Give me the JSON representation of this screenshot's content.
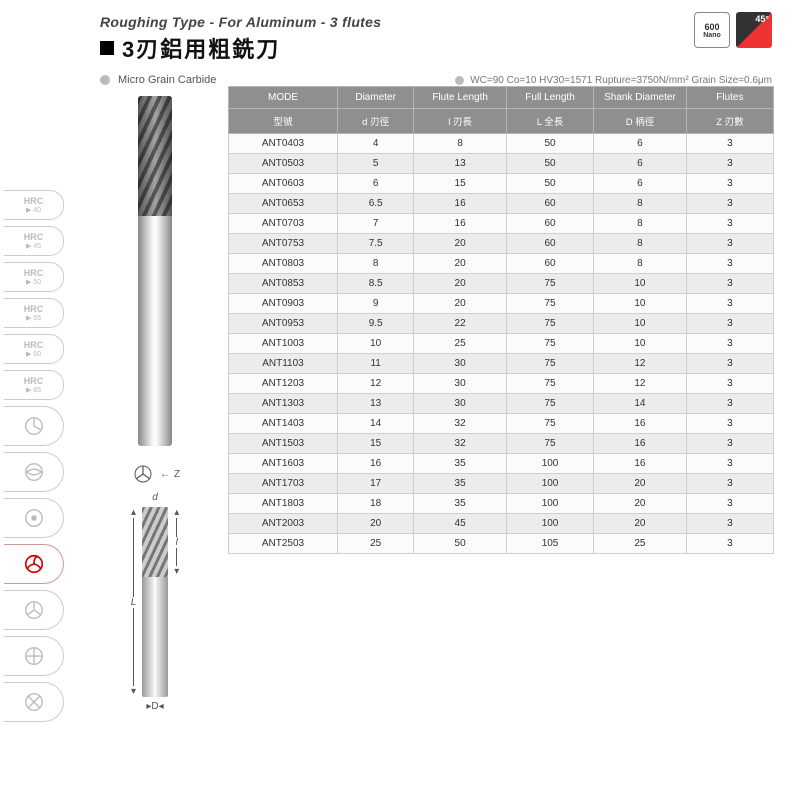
{
  "header": {
    "subtitle": "Roughing Type - For Aluminum - 3 flutes",
    "title": "3刃鋁用粗銑刀",
    "badge_600_top": "600",
    "badge_600_bottom": "Nano",
    "badge_45": "45°"
  },
  "material": {
    "label": "Micro Grain Carbide",
    "spec": "WC=90 Co=10 HV30=1571 Rupture=3750N/mm² Grain Size=0.6μm"
  },
  "rail": {
    "hrc": [
      {
        "t": "HRC",
        "s": "▶ 40"
      },
      {
        "t": "HRC",
        "s": "▶ 45"
      },
      {
        "t": "HRC",
        "s": "▶ 50"
      },
      {
        "t": "HRC",
        "s": "▶ 55"
      },
      {
        "t": "HRC",
        "s": "▶ 60"
      },
      {
        "t": "HRC",
        "s": "▶ 65"
      }
    ]
  },
  "diagram": {
    "z": "Z",
    "d": "d",
    "l": "l",
    "L": "L",
    "D": "D"
  },
  "table": {
    "head1": [
      "MODE",
      "Diameter",
      "Flute\nLength",
      "Full\nLength",
      "Shank\nDiameter",
      "Flutes"
    ],
    "head2": [
      "型號",
      "d 刃徑",
      "l 刃長",
      "L 全長",
      "D 柄徑",
      "Z 刃數"
    ],
    "rows": [
      [
        "ANT0403",
        "4",
        "8",
        "50",
        "6",
        "3"
      ],
      [
        "ANT0503",
        "5",
        "13",
        "50",
        "6",
        "3"
      ],
      [
        "ANT0603",
        "6",
        "15",
        "50",
        "6",
        "3"
      ],
      [
        "ANT0653",
        "6.5",
        "16",
        "60",
        "8",
        "3"
      ],
      [
        "ANT0703",
        "7",
        "16",
        "60",
        "8",
        "3"
      ],
      [
        "ANT0753",
        "7.5",
        "20",
        "60",
        "8",
        "3"
      ],
      [
        "ANT0803",
        "8",
        "20",
        "60",
        "8",
        "3"
      ],
      [
        "ANT0853",
        "8.5",
        "20",
        "75",
        "10",
        "3"
      ],
      [
        "ANT0903",
        "9",
        "20",
        "75",
        "10",
        "3"
      ],
      [
        "ANT0953",
        "9.5",
        "22",
        "75",
        "10",
        "3"
      ],
      [
        "ANT1003",
        "10",
        "25",
        "75",
        "10",
        "3"
      ],
      [
        "ANT1103",
        "11",
        "30",
        "75",
        "12",
        "3"
      ],
      [
        "ANT1203",
        "12",
        "30",
        "75",
        "12",
        "3"
      ],
      [
        "ANT1303",
        "13",
        "30",
        "75",
        "14",
        "3"
      ],
      [
        "ANT1403",
        "14",
        "32",
        "75",
        "16",
        "3"
      ],
      [
        "ANT1503",
        "15",
        "32",
        "75",
        "16",
        "3"
      ],
      [
        "ANT1603",
        "16",
        "35",
        "100",
        "16",
        "3"
      ],
      [
        "ANT1703",
        "17",
        "35",
        "100",
        "20",
        "3"
      ],
      [
        "ANT1803",
        "18",
        "35",
        "100",
        "20",
        "3"
      ],
      [
        "ANT2003",
        "20",
        "45",
        "100",
        "20",
        "3"
      ],
      [
        "ANT2503",
        "25",
        "50",
        "105",
        "25",
        "3"
      ]
    ],
    "col_widths_pct": [
      20,
      14,
      17,
      16,
      17,
      16
    ],
    "header_bg": "#8f8f8f",
    "header_fg": "#ffffff",
    "row_even_bg": "#ececec",
    "row_odd_bg": "#fbfbfb",
    "border_color": "#cfcfcf"
  }
}
